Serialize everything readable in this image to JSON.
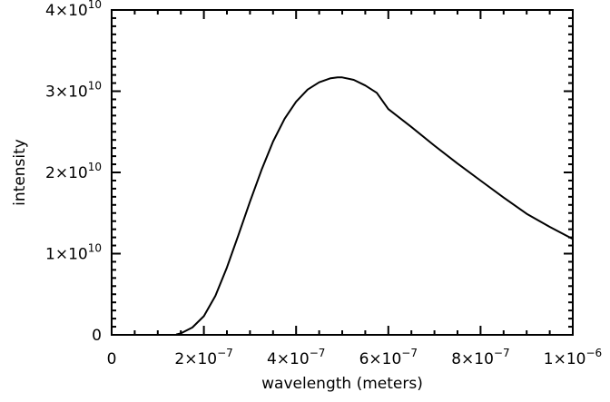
{
  "chart_data": {
    "type": "line",
    "title": "",
    "xlabel": "wavelength (meters)",
    "ylabel": "intensity",
    "xlim": [
      0,
      1e-06
    ],
    "ylim": [
      0,
      40000000000.0
    ],
    "grid": false,
    "legend": null,
    "x_ticks": [
      {
        "value": 0,
        "mantissa": "0",
        "exp": ""
      },
      {
        "value": 2e-07,
        "mantissa": "2×10",
        "exp": "−7"
      },
      {
        "value": 4e-07,
        "mantissa": "4×10",
        "exp": "−7"
      },
      {
        "value": 6e-07,
        "mantissa": "6×10",
        "exp": "−7"
      },
      {
        "value": 8e-07,
        "mantissa": "8×10",
        "exp": "−7"
      },
      {
        "value": 1e-06,
        "mantissa": "1×10",
        "exp": "−6"
      }
    ],
    "y_ticks": [
      {
        "value": 0,
        "mantissa": "0",
        "exp": ""
      },
      {
        "value": 10000000000.0,
        "mantissa": "1×10",
        "exp": "10"
      },
      {
        "value": 20000000000.0,
        "mantissa": "2×10",
        "exp": "10"
      },
      {
        "value": 30000000000.0,
        "mantissa": "3×10",
        "exp": "10"
      },
      {
        "value": 40000000000.0,
        "mantissa": "4×10",
        "exp": "10"
      }
    ],
    "x_minor_per_major": 4,
    "y_minor_per_major": 10,
    "series": [
      {
        "name": "intensity",
        "color": "#000000",
        "x": [
          1.4e-07,
          1.5e-07,
          1.75e-07,
          2e-07,
          2.25e-07,
          2.5e-07,
          2.75e-07,
          3e-07,
          3.25e-07,
          3.5e-07,
          3.75e-07,
          4e-07,
          4.25e-07,
          4.5e-07,
          4.75e-07,
          4.9e-07,
          5e-07,
          5.25e-07,
          5.5e-07,
          5.75e-07,
          6e-07,
          6.5e-07,
          7e-07,
          7.5e-07,
          8e-07,
          8.5e-07,
          9e-07,
          9.5e-07,
          1e-06
        ],
        "y": [
          50000000.0,
          180000000.0,
          900000000.0,
          2300000000.0,
          4800000000.0,
          8300000000.0,
          12300000000.0,
          16400000000.0,
          20300000000.0,
          23800000000.0,
          26600000000.0,
          28700000000.0,
          30200000000.0,
          31100000000.0,
          31600000000.0,
          31700000000.0,
          31700000000.0,
          31400000000.0,
          30700000000.0,
          29800000000.0,
          27800000000.0,
          25600000000.0,
          23300000000.0,
          21100000000.0,
          19000000000.0,
          16900000000.0,
          14900000000.0,
          13300000000.0,
          11800000000.0
        ]
      }
    ]
  }
}
